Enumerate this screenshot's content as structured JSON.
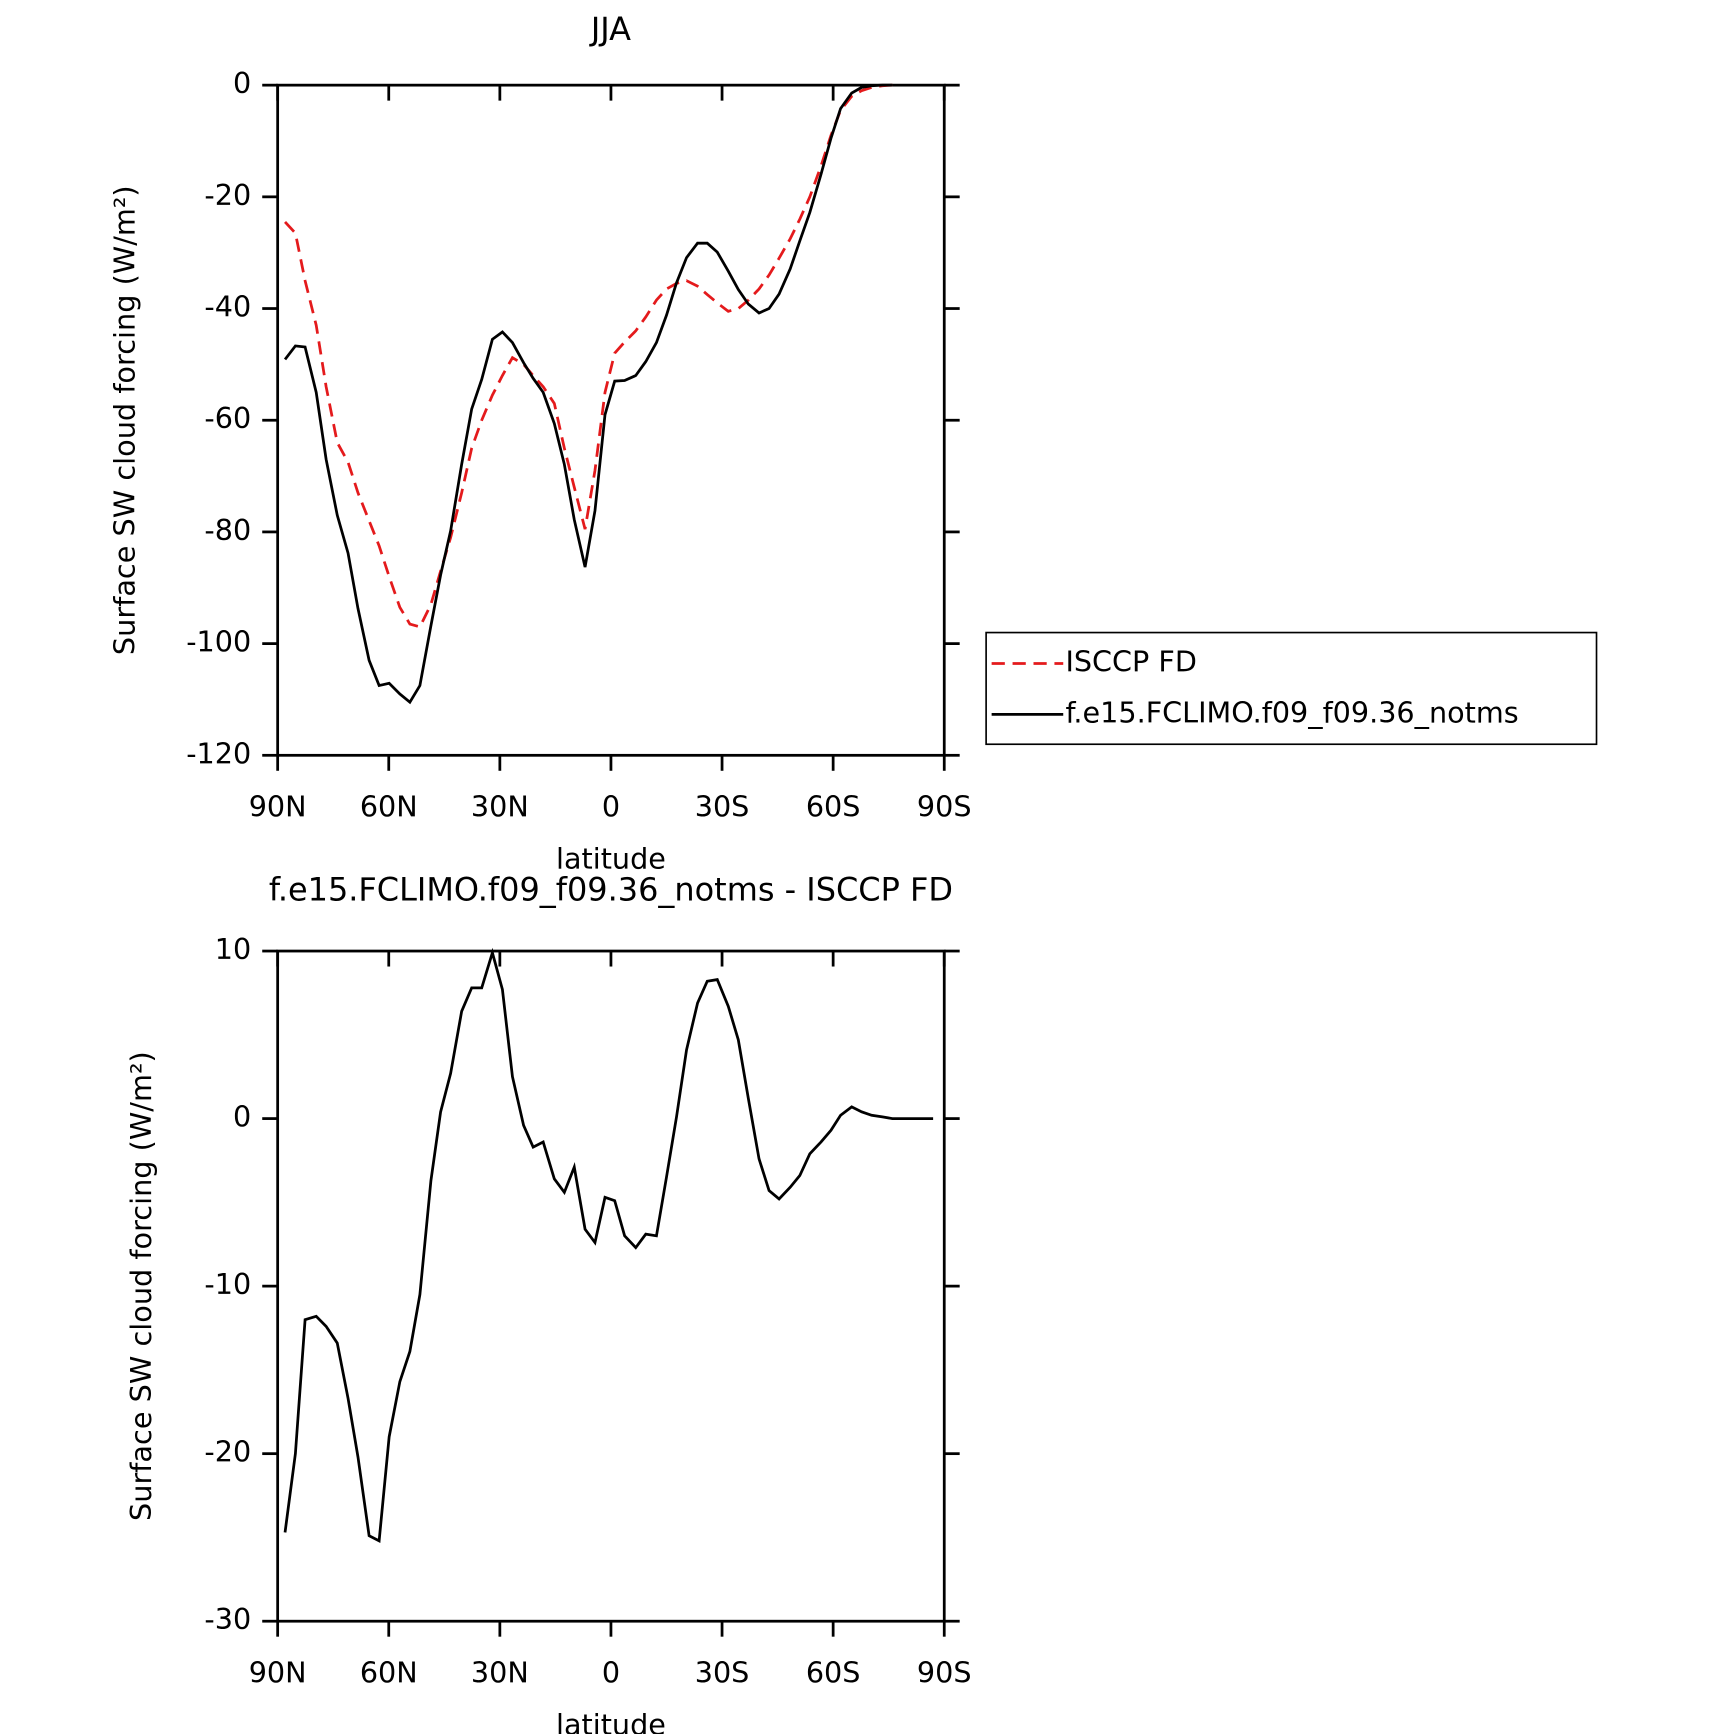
{
  "chart_data": [
    {
      "type": "line",
      "title": "JJA",
      "xlabel": "latitude",
      "ylabel": "Surface SW cloud forcing (W/m²)",
      "x": [
        88,
        85.2,
        82.6,
        79.6,
        76.9,
        73.9,
        71,
        68.3,
        65.3,
        62.6,
        59.9,
        57,
        54.3,
        51.6,
        48.6,
        46,
        43.3,
        40.3,
        37.6,
        34.9,
        32,
        29.3,
        26.6,
        23.6,
        21,
        18.3,
        15.3,
        12.6,
        9.9,
        7,
        4.3,
        1.6,
        -1,
        -3.7,
        -6.7,
        -9.4,
        -12.3,
        -15,
        -17.7,
        -20.4,
        -23.4,
        -26,
        -28.7,
        -31.7,
        -34.4,
        -37.1,
        -40,
        -42.7,
        -45.4,
        -48.4,
        -51,
        -53.7,
        -56.7,
        -59.4,
        -62,
        -65,
        -67.7,
        -70.4,
        -73.3,
        -76
      ],
      "series": [
        {
          "name": "ISCCP FD",
          "color": "#e41a1c",
          "dashed": true,
          "values": [
            -24.5,
            -26.5,
            -35,
            -43,
            -54,
            -64,
            -67.5,
            -73,
            -78,
            -82.5,
            -88,
            -93.5,
            -96.5,
            -97,
            -93,
            -87,
            -81,
            -73,
            -65,
            -60,
            -55.5,
            -52,
            -48.8,
            -50,
            -52,
            -54,
            -57,
            -65,
            -72,
            -79.5,
            -69,
            -55,
            -48,
            -46,
            -44,
            -41.5,
            -38.5,
            -36.5,
            -35.5,
            -35,
            -36,
            -37.5,
            -39,
            -40.5,
            -40,
            -38.5,
            -36.5,
            -34,
            -31,
            -27.5,
            -24,
            -20,
            -14.5,
            -9,
            -4.5,
            -2,
            -1,
            -0.4,
            -0.1,
            0
          ]
        },
        {
          "name": "f.e15.FCLIMO.f09_f09.36_notms",
          "color": "#000000",
          "dashed": false,
          "values": [
            -49.1,
            -46.7,
            -46.9,
            -55,
            -67,
            -77,
            -83.8,
            -93.7,
            -103,
            -107.5,
            -107.1,
            -109,
            -110.5,
            -107.5,
            -96.8,
            -87.7,
            -79.8,
            -67.9,
            -58,
            -52.7,
            -45.5,
            -44.2,
            -46.1,
            -49.7,
            -52.5,
            -55,
            -60.6,
            -67.9,
            -77.8,
            -86.3,
            -76.2,
            -59,
            -53,
            -52.9,
            -52,
            -49.5,
            -46.1,
            -41.2,
            -35.4,
            -30.9,
            -28.3,
            -28.3,
            -29.9,
            -33.3,
            -36.6,
            -39.2,
            -40.8,
            -40,
            -37.4,
            -32.9,
            -27.9,
            -22.8,
            -16,
            -9.5,
            -4.2,
            -1.4,
            -0.4,
            -0.1,
            0,
            0
          ]
        }
      ],
      "xlim": [
        90,
        -90
      ],
      "xticks": [
        {
          "value": 90,
          "label": "90N"
        },
        {
          "value": 60,
          "label": "60N"
        },
        {
          "value": 30,
          "label": "30N"
        },
        0,
        {
          "value": -30,
          "label": "30S"
        },
        {
          "value": -60,
          "label": "60S"
        },
        {
          "value": -90,
          "label": "90S"
        }
      ],
      "ylim": [
        -120,
        0
      ],
      "yticks": [
        0,
        -20,
        -40,
        -60,
        -80,
        -100,
        -120
      ],
      "legend": "right"
    },
    {
      "type": "line",
      "title": "f.e15.FCLIMO.f09_f09.36_notms - ISCCP FD",
      "xlabel": "latitude",
      "ylabel": "Surface SW cloud forcing (W/m²)",
      "x": [
        88,
        85.2,
        82.6,
        79.6,
        76.9,
        73.9,
        71,
        68.3,
        65.3,
        62.6,
        59.9,
        57,
        54.3,
        51.6,
        48.6,
        46,
        43.3,
        40.3,
        37.6,
        34.9,
        32,
        29.3,
        26.6,
        23.6,
        21,
        18.3,
        15.3,
        12.6,
        9.9,
        7,
        4.3,
        1.6,
        -1,
        -3.7,
        -6.7,
        -9.4,
        -12.3,
        -15,
        -17.7,
        -20.4,
        -23.4,
        -26,
        -28.7,
        -31.7,
        -34.4,
        -37.1,
        -40,
        -42.7,
        -45.4,
        -48.4,
        -51,
        -53.7,
        -56.7,
        -59.4,
        -62,
        -65,
        -67.7,
        -70.4,
        -73.3,
        -76,
        -78.7,
        -81.4,
        -84.1,
        -87
      ],
      "series": [
        {
          "color": "#000000",
          "dashed": false,
          "values": [
            -24.7,
            -20,
            -12,
            -11.8,
            -12.4,
            -13.4,
            -16.7,
            -20.2,
            -24.9,
            -25.2,
            -19,
            -15.7,
            -13.9,
            -10.5,
            -3.7,
            0.4,
            2.7,
            6.4,
            7.8,
            7.8,
            9.9,
            7.7,
            2.5,
            -0.4,
            -1.7,
            -1.4,
            -3.6,
            -4.4,
            -2.9,
            -6.6,
            -7.4,
            -4.7,
            -4.9,
            -7,
            -7.7,
            -6.9,
            -7,
            -3.5,
            0.1,
            4.1,
            6.9,
            8.2,
            8.3,
            6.7,
            4.7,
            1.2,
            -2.4,
            -4.3,
            -4.8,
            -4.1,
            -3.4,
            -2.1,
            -1.4,
            -0.7,
            0.2,
            0.7,
            0.4,
            0.2,
            0.1,
            0,
            0,
            0,
            0,
            0
          ]
        }
      ],
      "xlim": [
        90,
        -90
      ],
      "xticks": [
        {
          "value": 90,
          "label": "90N"
        },
        {
          "value": 60,
          "label": "60N"
        },
        {
          "value": 30,
          "label": "30N"
        },
        0,
        {
          "value": -30,
          "label": "30S"
        },
        {
          "value": -60,
          "label": "60S"
        },
        {
          "value": -90,
          "label": "90S"
        }
      ],
      "ylim": [
        -30,
        10
      ],
      "yticks": [
        10,
        0,
        -10,
        -20,
        -30
      ]
    }
  ]
}
